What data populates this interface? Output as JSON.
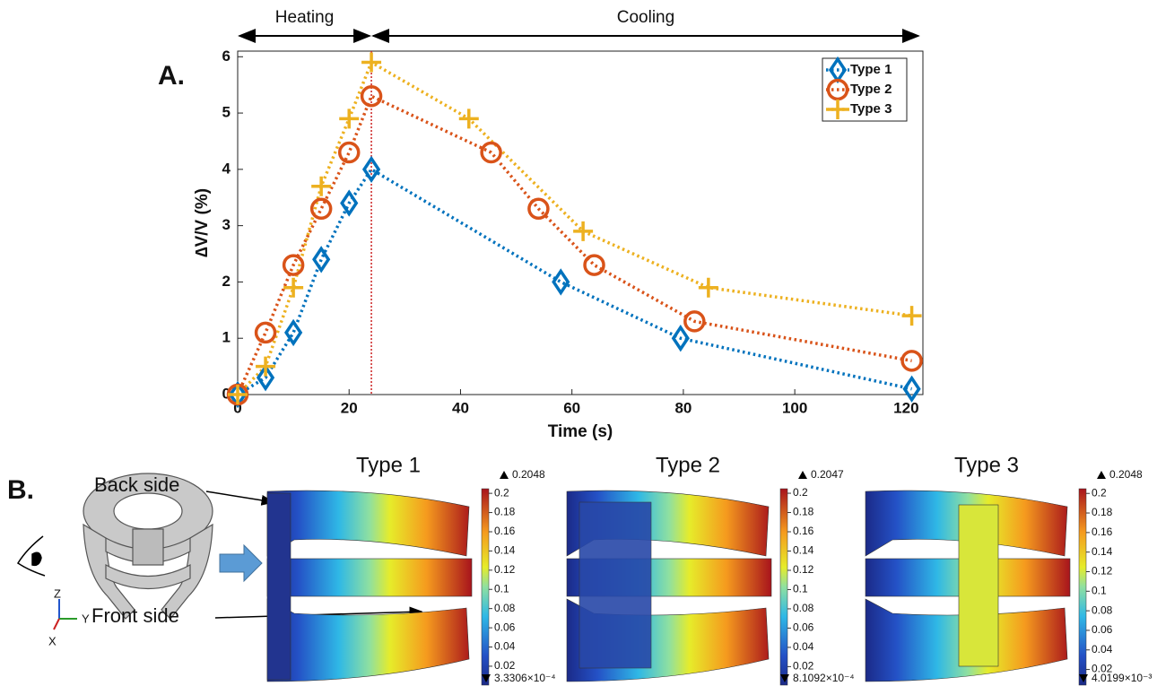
{
  "chart_data": {
    "type": "line",
    "panel_label": "A.",
    "x_label": "Time (s)",
    "y_label": "∆V/V (%)",
    "xlim": [
      0,
      123
    ],
    "xticks": [
      0,
      20,
      40,
      60,
      80,
      100,
      120
    ],
    "ylim": [
      0,
      6.1
    ],
    "yticks": [
      0,
      1,
      2,
      3,
      4,
      5,
      6
    ],
    "legend": "upper right",
    "divider_x": 24,
    "phases": [
      {
        "label": "Heating",
        "start": 0,
        "end": 24
      },
      {
        "label": "Cooling",
        "start": 24,
        "end": 122.5
      }
    ],
    "series": [
      {
        "name": "Type 1",
        "color": "#0072BD",
        "marker": "diamond",
        "x": [
          0,
          5,
          10,
          15,
          20,
          24,
          58,
          79.5,
          121
        ],
        "values": [
          0,
          0.3,
          1.1,
          2.4,
          3.4,
          4.0,
          2.0,
          1.0,
          0.1
        ]
      },
      {
        "name": "Type 2",
        "color": "#D95319",
        "marker": "circle",
        "x": [
          0,
          5,
          10,
          15,
          20,
          24,
          45.5,
          54,
          64,
          82,
          121
        ],
        "values": [
          0,
          1.1,
          2.3,
          3.3,
          4.3,
          5.3,
          4.3,
          3.3,
          2.3,
          1.3,
          0.6
        ]
      },
      {
        "name": "Type 3",
        "color": "#EDB120",
        "marker": "plus",
        "x": [
          0,
          5,
          10,
          15,
          20,
          24,
          41.5,
          62,
          84.5,
          121
        ],
        "values": [
          0,
          0.5,
          1.9,
          3.7,
          4.9,
          5.9,
          4.9,
          2.9,
          1.9,
          1.4
        ]
      }
    ]
  },
  "panel_b": {
    "label": "B.",
    "back_label": "Back side",
    "front_label": "Front side",
    "axes": [
      "Z",
      "Y",
      "X"
    ],
    "colorbar_ticks": [
      0.02,
      0.04,
      0.06,
      0.08,
      0.1,
      0.12,
      0.14,
      0.16,
      0.18,
      0.2
    ],
    "panels": [
      {
        "title": "Type 1",
        "max": 0.2048,
        "min": {
          "value": 0.00033306,
          "label": "3.3306×10⁻⁴"
        }
      },
      {
        "title": "Type 2",
        "max": 0.2047,
        "min": {
          "value": 0.00081092,
          "label": "8.1092×10⁻⁴"
        }
      },
      {
        "title": "Type 3",
        "max": 0.2048,
        "min": {
          "value": 0.0040199,
          "label": "4.0199×10⁻³"
        }
      }
    ]
  }
}
